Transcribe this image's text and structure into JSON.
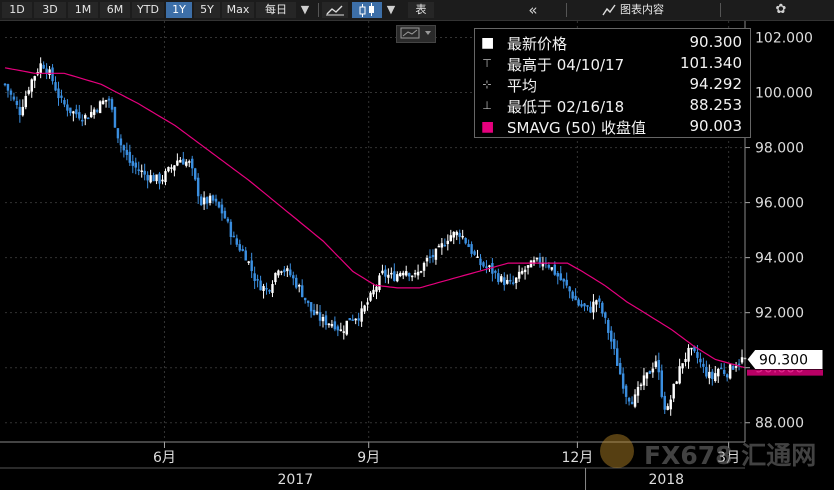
{
  "toolbar": {
    "ranges": [
      "1D",
      "3D",
      "1M",
      "6M",
      "YTD",
      "1Y",
      "5Y",
      "Max"
    ],
    "active_range": "1Y",
    "frequency": "每日",
    "frequency_arrow": "▼",
    "table_label": "表",
    "collapse_icon": "«",
    "chart_contents_label": "图表内容",
    "settings_icon": "✿",
    "dropdown_arrow": "▼"
  },
  "legend": [
    {
      "icon": "square-white-icon",
      "mark": "■",
      "label": "最新价格",
      "value": "90.300",
      "color": "#ffffff"
    },
    {
      "icon": "high-marker-icon",
      "mark": "⊤",
      "label": "最高于 04/10/17",
      "value": "101.340",
      "color": "#bbbbbb"
    },
    {
      "icon": "average-marker-icon",
      "mark": "⊹",
      "label": "平均",
      "value": "94.292",
      "color": "#bbbbbb"
    },
    {
      "icon": "low-marker-icon",
      "mark": "⊥",
      "label": "最低于 02/16/18",
      "value": "88.253",
      "color": "#bbbbbb"
    },
    {
      "icon": "square-magenta-icon",
      "mark": "■",
      "label": "SMAVG (50) 收盘值",
      "value": "90.003",
      "color": "#e6007e"
    }
  ],
  "watermark": {
    "text": "FX678 汇通网",
    "icon": "fx678-logo-icon"
  },
  "chart_data": {
    "type": "candlestick",
    "ylim": [
      87.3,
      102.6
    ],
    "yticks": [
      "102.000",
      "100.000",
      "98.000",
      "96.000",
      "94.000",
      "92.000",
      "90.000",
      "88.000"
    ],
    "ytick_values": [
      102,
      100,
      98,
      96,
      94,
      92,
      90,
      88
    ],
    "x_month_labels": [
      {
        "label": "6月",
        "t": 0.2155
      },
      {
        "label": "9月",
        "t": 0.4915
      },
      {
        "label": "12月",
        "t": 0.7735
      },
      {
        "label": "3月",
        "t": 0.9779
      }
    ],
    "x_year_labels": [
      {
        "label": "2017",
        "t": 0.3923
      },
      {
        "label": "2018",
        "t": 0.8936
      }
    ],
    "year_divider_t": 0.7845,
    "last_price": "90.300",
    "last_price_value": 90.3,
    "sma_label_value": 90.003,
    "grid": true,
    "up_color": "#ffffff",
    "down_color": "#3b8fe0",
    "sma_color": "#e6007e",
    "sma_period": 50,
    "close_anchors": [
      [
        0.0,
        100.3
      ],
      [
        0.01,
        99.8
      ],
      [
        0.02,
        99.3
      ],
      [
        0.035,
        100.4
      ],
      [
        0.05,
        101.1
      ],
      [
        0.062,
        100.6
      ],
      [
        0.075,
        99.7
      ],
      [
        0.09,
        99.3
      ],
      [
        0.11,
        99.1
      ],
      [
        0.125,
        99.5
      ],
      [
        0.14,
        99.8
      ],
      [
        0.155,
        98.2
      ],
      [
        0.17,
        97.4
      ],
      [
        0.19,
        97.0
      ],
      [
        0.21,
        96.8
      ],
      [
        0.235,
        97.6
      ],
      [
        0.25,
        97.4
      ],
      [
        0.265,
        96.0
      ],
      [
        0.28,
        96.1
      ],
      [
        0.295,
        95.6
      ],
      [
        0.31,
        94.6
      ],
      [
        0.325,
        94.1
      ],
      [
        0.34,
        93.1
      ],
      [
        0.355,
        92.8
      ],
      [
        0.37,
        93.7
      ],
      [
        0.385,
        93.4
      ],
      [
        0.4,
        92.8
      ],
      [
        0.415,
        92.0
      ],
      [
        0.43,
        91.7
      ],
      [
        0.445,
        91.6
      ],
      [
        0.455,
        91.3
      ],
      [
        0.465,
        91.8
      ],
      [
        0.48,
        91.9
      ],
      [
        0.495,
        92.6
      ],
      [
        0.51,
        93.4
      ],
      [
        0.525,
        93.3
      ],
      [
        0.54,
        93.6
      ],
      [
        0.555,
        93.3
      ],
      [
        0.57,
        93.9
      ],
      [
        0.585,
        94.2
      ],
      [
        0.6,
        94.8
      ],
      [
        0.615,
        94.9
      ],
      [
        0.625,
        94.5
      ],
      [
        0.64,
        93.8
      ],
      [
        0.655,
        93.6
      ],
      [
        0.67,
        93.2
      ],
      [
        0.685,
        93.0
      ],
      [
        0.7,
        93.5
      ],
      [
        0.715,
        93.8
      ],
      [
        0.73,
        93.9
      ],
      [
        0.745,
        93.4
      ],
      [
        0.76,
        92.9
      ],
      [
        0.775,
        92.3
      ],
      [
        0.79,
        92.1
      ],
      [
        0.8,
        92.5
      ],
      [
        0.81,
        91.8
      ],
      [
        0.82,
        90.9
      ],
      [
        0.83,
        89.9
      ],
      [
        0.84,
        89.0
      ],
      [
        0.85,
        88.8
      ],
      [
        0.86,
        89.4
      ],
      [
        0.87,
        89.8
      ],
      [
        0.88,
        90.3
      ],
      [
        0.89,
        88.7
      ],
      [
        0.895,
        88.4
      ],
      [
        0.905,
        89.4
      ],
      [
        0.915,
        90.2
      ],
      [
        0.925,
        90.6
      ],
      [
        0.935,
        90.4
      ],
      [
        0.945,
        89.9
      ],
      [
        0.955,
        89.6
      ],
      [
        0.965,
        90.0
      ],
      [
        0.975,
        89.8
      ],
      [
        0.985,
        90.1
      ],
      [
        0.995,
        90.3
      ],
      [
        1.0,
        90.3
      ]
    ],
    "sma_anchors": [
      [
        0.0,
        100.9
      ],
      [
        0.04,
        100.7
      ],
      [
        0.08,
        100.7
      ],
      [
        0.13,
        100.3
      ],
      [
        0.18,
        99.6
      ],
      [
        0.23,
        98.8
      ],
      [
        0.28,
        97.8
      ],
      [
        0.33,
        96.8
      ],
      [
        0.38,
        95.7
      ],
      [
        0.43,
        94.6
      ],
      [
        0.47,
        93.5
      ],
      [
        0.5,
        93.0
      ],
      [
        0.53,
        92.9
      ],
      [
        0.56,
        92.9
      ],
      [
        0.6,
        93.2
      ],
      [
        0.64,
        93.5
      ],
      [
        0.68,
        93.8
      ],
      [
        0.72,
        93.8
      ],
      [
        0.76,
        93.8
      ],
      [
        0.78,
        93.5
      ],
      [
        0.81,
        93.0
      ],
      [
        0.84,
        92.4
      ],
      [
        0.87,
        91.9
      ],
      [
        0.9,
        91.4
      ],
      [
        0.93,
        90.8
      ],
      [
        0.96,
        90.3
      ],
      [
        1.0,
        90.0
      ]
    ]
  }
}
